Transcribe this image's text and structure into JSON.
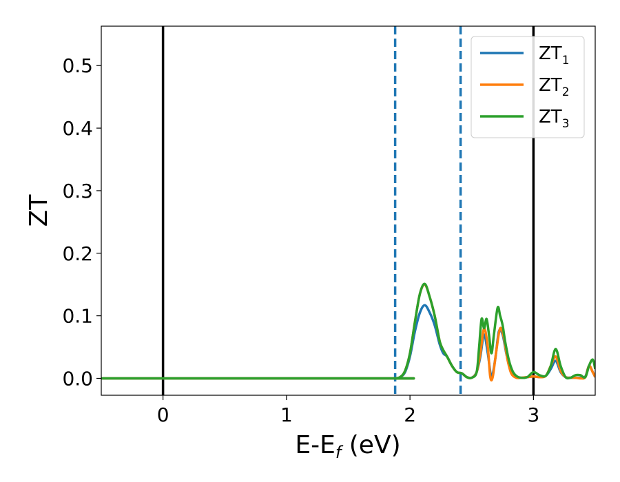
{
  "chart_data": {
    "type": "line",
    "xlabel": {
      "main": "E-E",
      "sub": "f",
      "unit": " (eV)"
    },
    "ylabel": "ZT",
    "xlim": [
      -0.5,
      3.5
    ],
    "ylim": [
      -0.027,
      0.563
    ],
    "xticks": [
      0,
      1,
      2,
      3
    ],
    "yticks": [
      0.0,
      0.1,
      0.2,
      0.3,
      0.4,
      0.5
    ],
    "grid": false,
    "legend_position": "top-right",
    "vlines_solid": [
      0,
      3
    ],
    "vlines_dashed": [
      1.88,
      2.41
    ],
    "series": [
      {
        "name": "ZT",
        "sub": "1",
        "color": "#1f77b4",
        "x": [
          -0.5,
          1.85,
          1.88,
          1.92,
          1.96,
          2.0,
          2.04,
          2.08,
          2.12,
          2.16,
          2.2,
          2.24,
          2.27,
          2.3,
          2.34,
          2.38,
          2.42,
          2.46,
          2.5,
          2.54,
          2.57,
          2.6,
          2.63,
          2.66,
          2.69,
          2.72,
          2.75,
          2.78,
          2.81,
          2.85,
          2.9,
          2.95,
          3.0,
          3.05,
          3.1,
          3.14,
          3.18,
          3.22,
          3.26,
          3.3,
          3.34,
          3.38,
          3.42,
          3.45,
          3.48,
          3.5
        ],
        "y": [
          0.0,
          0.0,
          0.0,
          0.002,
          0.01,
          0.035,
          0.075,
          0.105,
          0.117,
          0.105,
          0.085,
          0.055,
          0.04,
          0.035,
          0.02,
          0.01,
          0.008,
          0.002,
          0.001,
          0.01,
          0.035,
          0.07,
          0.04,
          0.003,
          0.03,
          0.075,
          0.07,
          0.04,
          0.015,
          0.003,
          0.001,
          0.002,
          0.003,
          0.002,
          0.004,
          0.015,
          0.028,
          0.01,
          0.002,
          0.001,
          0.001,
          0.001,
          0.003,
          0.02,
          0.01,
          0.002
        ]
      },
      {
        "name": "ZT",
        "sub": "2",
        "color": "#ff7f0e",
        "x": [
          -0.5,
          1.85,
          1.88,
          1.92,
          1.96,
          2.0,
          2.04,
          2.08,
          2.12,
          2.16,
          2.2,
          2.24,
          2.27,
          2.3,
          2.34,
          2.38,
          2.42,
          2.46,
          2.5,
          2.54,
          2.57,
          2.6,
          2.63,
          2.65,
          2.67,
          2.7,
          2.73,
          2.76,
          2.79,
          2.82,
          2.86,
          2.9,
          2.95,
          3.0,
          3.05,
          3.1,
          3.14,
          3.18,
          3.22,
          3.26,
          3.3,
          3.34,
          3.38,
          3.42,
          3.45,
          3.48,
          3.5
        ],
        "y": [
          0.0,
          0.0,
          0.0,
          0.002,
          0.012,
          0.04,
          0.09,
          0.135,
          0.15,
          0.13,
          0.1,
          0.06,
          0.045,
          0.035,
          0.02,
          0.01,
          0.008,
          0.002,
          0.001,
          0.01,
          0.04,
          0.08,
          0.05,
          0.003,
          0.002,
          0.045,
          0.08,
          0.065,
          0.03,
          0.008,
          0.001,
          0.001,
          0.002,
          0.003,
          0.002,
          0.004,
          0.02,
          0.035,
          0.012,
          0.002,
          0.001,
          0.001,
          0.0,
          0.002,
          0.02,
          0.01,
          0.002
        ]
      },
      {
        "name": "ZT",
        "sub": "3",
        "color": "#2ca02c",
        "x": [
          -0.5,
          1.85,
          1.88,
          1.92,
          1.96,
          2.0,
          2.04,
          2.08,
          2.12,
          2.16,
          2.2,
          2.24,
          2.27,
          2.3,
          2.34,
          2.38,
          2.42,
          2.46,
          2.5,
          2.54,
          2.56,
          2.58,
          2.6,
          2.62,
          2.64,
          2.66,
          2.68,
          2.71,
          2.73,
          2.75,
          2.77,
          2.8,
          2.83,
          2.86,
          2.9,
          2.95,
          3.0,
          3.05,
          3.1,
          3.14,
          3.18,
          3.22,
          3.26,
          3.3,
          3.34,
          3.38,
          3.42,
          3.45,
          3.48,
          3.5
        ],
        "y": [
          0.0,
          0.0,
          0.0,
          0.002,
          0.012,
          0.04,
          0.09,
          0.135,
          0.151,
          0.13,
          0.1,
          0.06,
          0.045,
          0.035,
          0.02,
          0.01,
          0.008,
          0.002,
          0.001,
          0.01,
          0.05,
          0.095,
          0.08,
          0.095,
          0.07,
          0.04,
          0.07,
          0.113,
          0.1,
          0.085,
          0.06,
          0.03,
          0.012,
          0.004,
          0.001,
          0.002,
          0.01,
          0.005,
          0.004,
          0.02,
          0.047,
          0.02,
          0.002,
          0.001,
          0.005,
          0.005,
          0.002,
          0.02,
          0.03,
          0.015
        ]
      }
    ]
  }
}
